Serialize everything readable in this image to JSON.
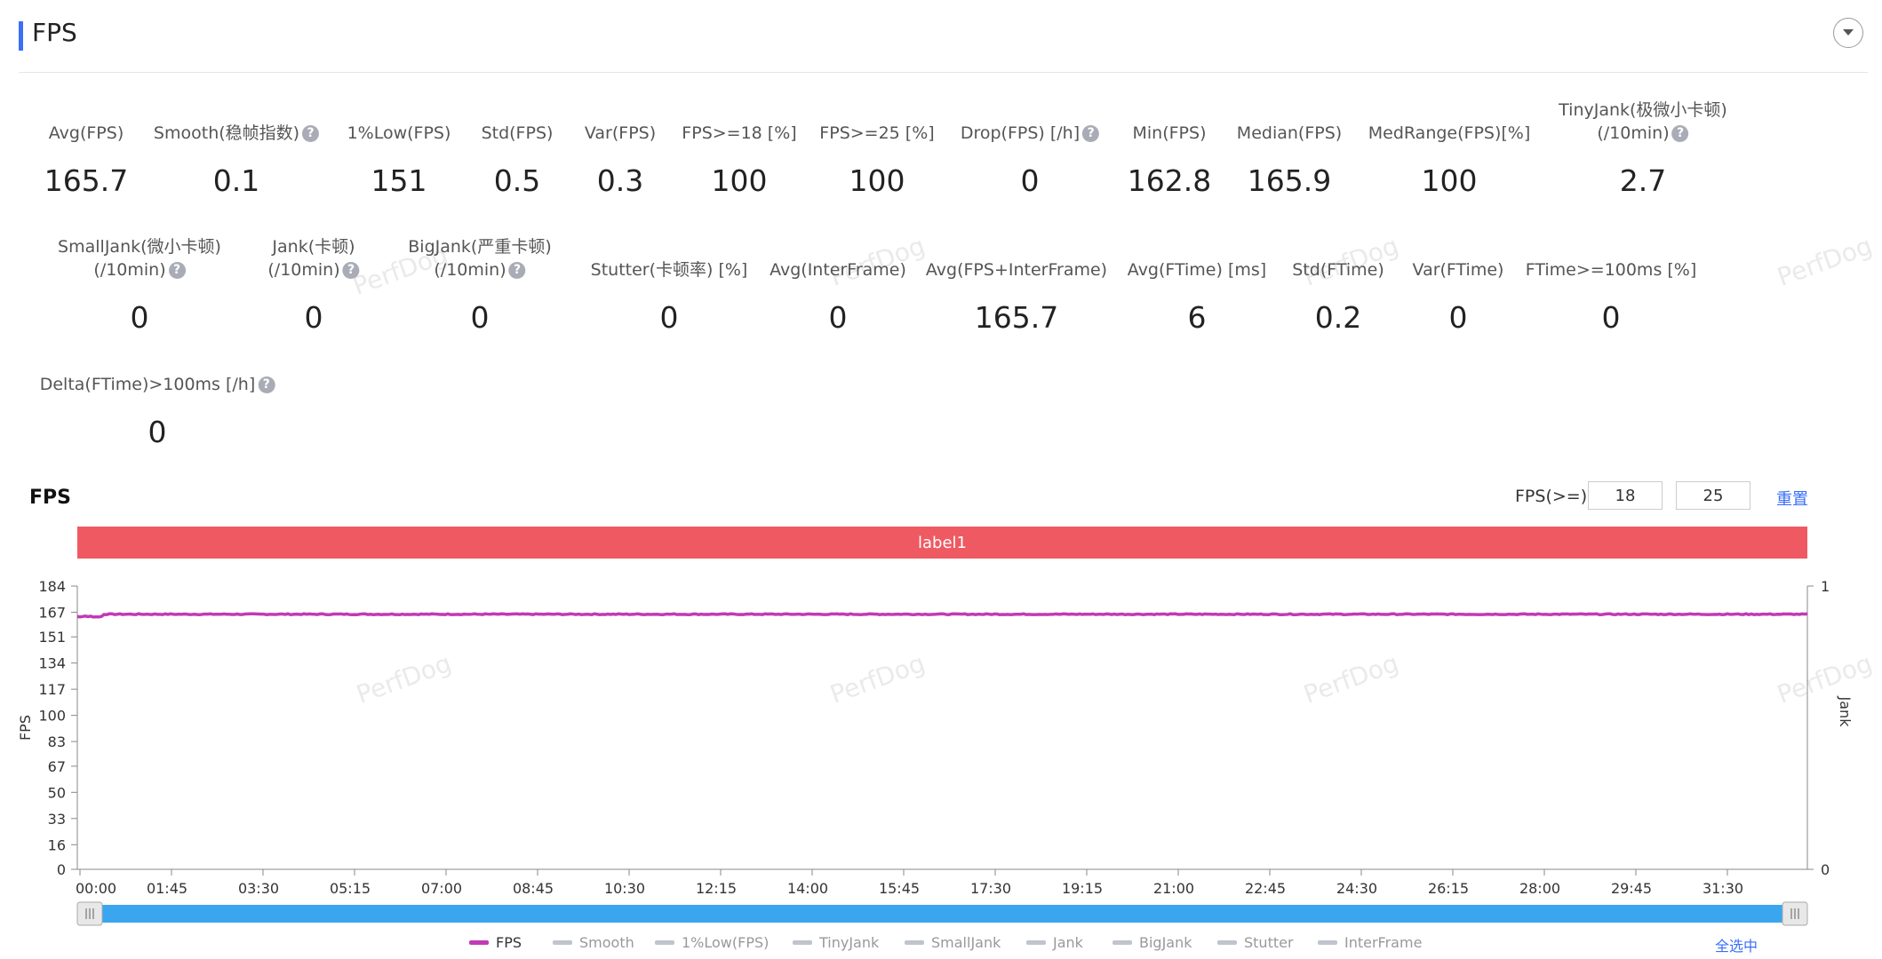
{
  "header": {
    "title": "FPS"
  },
  "metrics_row1": [
    {
      "label": "Avg(FPS)",
      "value": "165.7",
      "help": false
    },
    {
      "label": "Smooth(稳帧指数)",
      "value": "0.1",
      "help": true
    },
    {
      "label": "1%Low(FPS)",
      "value": "151",
      "help": false
    },
    {
      "label": "Std(FPS)",
      "value": "0.5",
      "help": false
    },
    {
      "label": "Var(FPS)",
      "value": "0.3",
      "help": false
    },
    {
      "label": "FPS>=18 [%]",
      "value": "100",
      "help": false
    },
    {
      "label": "FPS>=25 [%]",
      "value": "100",
      "help": false
    },
    {
      "label": "Drop(FPS) [/h]",
      "value": "0",
      "help": true
    },
    {
      "label": "Min(FPS)",
      "value": "162.8",
      "help": false
    },
    {
      "label": "Median(FPS)",
      "value": "165.9",
      "help": false
    },
    {
      "label": "MedRange(FPS)[%]",
      "value": "100",
      "help": false
    },
    {
      "label": "TinyJank(极微小卡顿)",
      "label2": "(/10min)",
      "value": "2.7",
      "help": true
    }
  ],
  "metrics_row2": [
    {
      "label": "SmallJank(微小卡顿)",
      "label2": "(/10min)",
      "value": "0",
      "help": true
    },
    {
      "label": "Jank(卡顿)",
      "label2": "(/10min)",
      "value": "0",
      "help": true
    },
    {
      "label": "BigJank(严重卡顿)",
      "label2": "(/10min)",
      "value": "0",
      "help": true
    },
    {
      "label": "Stutter(卡顿率) [%]",
      "value": "0",
      "help": false
    },
    {
      "label": "Avg(InterFrame)",
      "value": "0",
      "help": false
    },
    {
      "label": "Avg(FPS+InterFrame)",
      "value": "165.7",
      "help": false
    },
    {
      "label": "Avg(FTime) [ms]",
      "value": "6",
      "help": false
    },
    {
      "label": "Std(FTime)",
      "value": "0.2",
      "help": false
    },
    {
      "label": "Var(FTime)",
      "value": "0",
      "help": false
    },
    {
      "label": "FTime>=100ms [%]",
      "value": "0",
      "help": false
    }
  ],
  "metrics_row3": [
    {
      "label": "Delta(FTime)>100ms [/h]",
      "value": "0",
      "help": true
    }
  ],
  "help_glyph": "?",
  "watermark": "PerfDog",
  "chart_section": {
    "title": "FPS",
    "filter_label": "FPS(>=)",
    "threshold1": "18",
    "threshold2": "25",
    "reset_label": "重置",
    "label_bar": "label1",
    "select_all": "全选中"
  },
  "legend": [
    {
      "name": "FPS",
      "color": "#c13ab6",
      "active": true
    },
    {
      "name": "Smooth",
      "active": false
    },
    {
      "name": "1%Low(FPS)",
      "active": false
    },
    {
      "name": "TinyJank",
      "active": false
    },
    {
      "name": "SmallJank",
      "active": false
    },
    {
      "name": "Jank",
      "active": false
    },
    {
      "name": "BigJank",
      "active": false
    },
    {
      "name": "Stutter",
      "active": false
    },
    {
      "name": "InterFrame",
      "active": false
    }
  ],
  "chart_data": {
    "type": "line",
    "ylabel": "FPS",
    "y2label": "Jank",
    "yticks": [
      "0",
      "16",
      "33",
      "50",
      "67",
      "83",
      "100",
      "117",
      "134",
      "151",
      "167",
      "184"
    ],
    "ylim": [
      0,
      184
    ],
    "y2ticks": [
      "0",
      "1"
    ],
    "xticks": [
      "00:00",
      "01:45",
      "03:30",
      "05:15",
      "07:00",
      "08:45",
      "10:30",
      "12:15",
      "14:00",
      "15:45",
      "17:30",
      "19:15",
      "21:00",
      "22:45",
      "24:30",
      "26:15",
      "28:00",
      "29:45",
      "31:30"
    ],
    "series": [
      {
        "name": "FPS",
        "color": "#c13ab6",
        "approx_value": 165.7,
        "min": 162.8
      }
    ]
  }
}
